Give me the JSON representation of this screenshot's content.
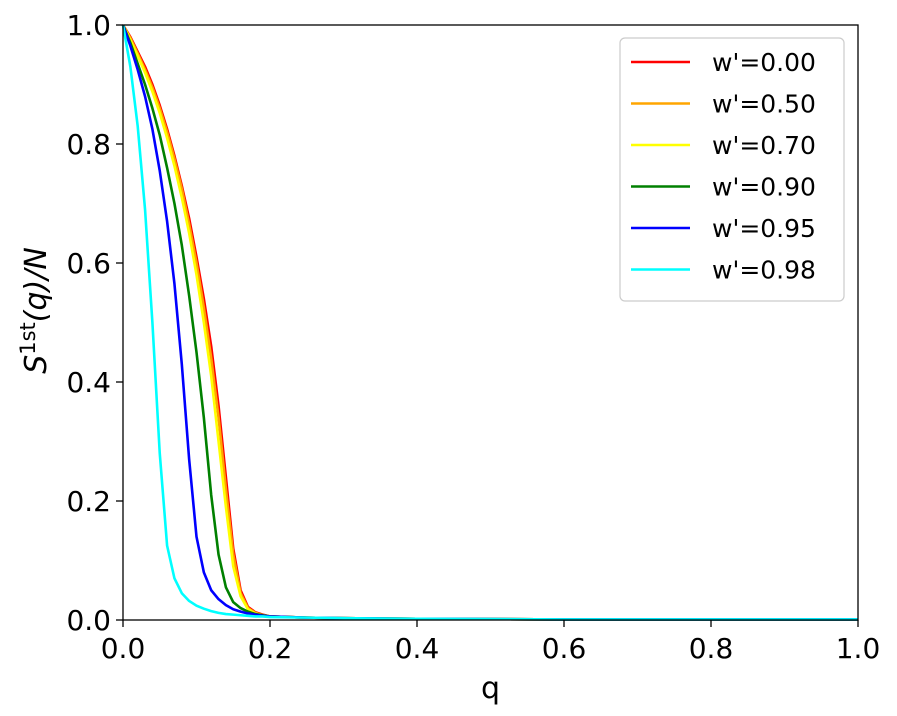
{
  "chart_data": {
    "type": "line",
    "title": "",
    "xlabel": "q",
    "ylabel": {
      "base": "S",
      "superscript": "1st",
      "rest": "(q)/N"
    },
    "xlim": [
      0.0,
      1.0
    ],
    "ylim": [
      0.0,
      1.0
    ],
    "xticks": [
      "0.0",
      "0.2",
      "0.4",
      "0.6",
      "0.8",
      "1.0"
    ],
    "yticks": [
      "0.0",
      "0.2",
      "0.4",
      "0.6",
      "0.8",
      "1.0"
    ],
    "grid": false,
    "legend_position": "top-right",
    "series": [
      {
        "name": "w'=0.00",
        "color": "#ff0000",
        "x": [
          0.0,
          0.01,
          0.02,
          0.03,
          0.04,
          0.05,
          0.06,
          0.07,
          0.08,
          0.09,
          0.1,
          0.11,
          0.12,
          0.13,
          0.14,
          0.15,
          0.16,
          0.17,
          0.18,
          0.19,
          0.2,
          0.25,
          0.3,
          0.4,
          0.6,
          0.8,
          1.0
        ],
        "y": [
          1.0,
          0.98,
          0.955,
          0.93,
          0.9,
          0.865,
          0.825,
          0.78,
          0.73,
          0.675,
          0.61,
          0.54,
          0.46,
          0.36,
          0.24,
          0.12,
          0.05,
          0.022,
          0.013,
          0.009,
          0.006,
          0.004,
          0.003,
          0.002,
          0.001,
          0.001,
          0.001
        ]
      },
      {
        "name": "w'=0.50",
        "color": "#ffa500",
        "x": [
          0.0,
          0.01,
          0.02,
          0.03,
          0.04,
          0.05,
          0.06,
          0.07,
          0.08,
          0.09,
          0.1,
          0.11,
          0.12,
          0.13,
          0.14,
          0.15,
          0.16,
          0.17,
          0.18,
          0.19,
          0.2,
          0.25,
          0.3,
          0.4,
          0.6,
          0.8,
          1.0
        ],
        "y": [
          1.0,
          0.978,
          0.952,
          0.925,
          0.895,
          0.86,
          0.82,
          0.775,
          0.725,
          0.665,
          0.6,
          0.525,
          0.44,
          0.34,
          0.22,
          0.11,
          0.045,
          0.02,
          0.012,
          0.008,
          0.006,
          0.004,
          0.003,
          0.002,
          0.001,
          0.001,
          0.001
        ]
      },
      {
        "name": "w'=0.70",
        "color": "#ffff00",
        "x": [
          0.0,
          0.01,
          0.02,
          0.03,
          0.04,
          0.05,
          0.06,
          0.07,
          0.08,
          0.09,
          0.1,
          0.11,
          0.12,
          0.13,
          0.14,
          0.15,
          0.16,
          0.17,
          0.18,
          0.19,
          0.2,
          0.25,
          0.3,
          0.4,
          0.6,
          0.8,
          1.0
        ],
        "y": [
          1.0,
          0.975,
          0.948,
          0.92,
          0.888,
          0.852,
          0.81,
          0.763,
          0.71,
          0.65,
          0.58,
          0.5,
          0.41,
          0.3,
          0.19,
          0.09,
          0.04,
          0.018,
          0.011,
          0.008,
          0.006,
          0.004,
          0.003,
          0.002,
          0.001,
          0.001,
          0.001
        ]
      },
      {
        "name": "w'=0.90",
        "color": "#008000",
        "x": [
          0.0,
          0.01,
          0.02,
          0.03,
          0.04,
          0.05,
          0.06,
          0.07,
          0.08,
          0.09,
          0.1,
          0.11,
          0.12,
          0.13,
          0.14,
          0.15,
          0.16,
          0.17,
          0.18,
          0.19,
          0.2,
          0.25,
          0.3,
          0.4,
          0.6,
          0.8,
          1.0
        ],
        "y": [
          1.0,
          0.97,
          0.935,
          0.9,
          0.86,
          0.815,
          0.76,
          0.7,
          0.63,
          0.545,
          0.45,
          0.34,
          0.21,
          0.11,
          0.055,
          0.03,
          0.02,
          0.014,
          0.01,
          0.008,
          0.006,
          0.004,
          0.003,
          0.002,
          0.001,
          0.001,
          0.001
        ]
      },
      {
        "name": "w'=0.95",
        "color": "#0000ff",
        "x": [
          0.0,
          0.01,
          0.02,
          0.03,
          0.04,
          0.05,
          0.06,
          0.07,
          0.08,
          0.09,
          0.1,
          0.11,
          0.12,
          0.13,
          0.14,
          0.15,
          0.16,
          0.17,
          0.18,
          0.19,
          0.2,
          0.25,
          0.3,
          0.4,
          0.6,
          0.8,
          1.0
        ],
        "y": [
          1.0,
          0.965,
          0.925,
          0.88,
          0.825,
          0.755,
          0.67,
          0.565,
          0.43,
          0.27,
          0.14,
          0.08,
          0.05,
          0.035,
          0.025,
          0.018,
          0.014,
          0.011,
          0.009,
          0.007,
          0.006,
          0.004,
          0.003,
          0.002,
          0.001,
          0.001,
          0.001
        ]
      },
      {
        "name": "w'=0.98",
        "color": "#00ffff",
        "x": [
          0.0,
          0.01,
          0.02,
          0.03,
          0.04,
          0.05,
          0.06,
          0.07,
          0.08,
          0.09,
          0.1,
          0.11,
          0.12,
          0.13,
          0.14,
          0.15,
          0.16,
          0.17,
          0.18,
          0.19,
          0.2,
          0.25,
          0.3,
          0.4,
          0.6,
          0.8,
          1.0
        ],
        "y": [
          1.0,
          0.93,
          0.83,
          0.69,
          0.5,
          0.28,
          0.125,
          0.07,
          0.045,
          0.032,
          0.024,
          0.019,
          0.015,
          0.012,
          0.01,
          0.009,
          0.008,
          0.007,
          0.006,
          0.006,
          0.005,
          0.004,
          0.003,
          0.002,
          0.001,
          0.001,
          0.001
        ]
      }
    ]
  }
}
